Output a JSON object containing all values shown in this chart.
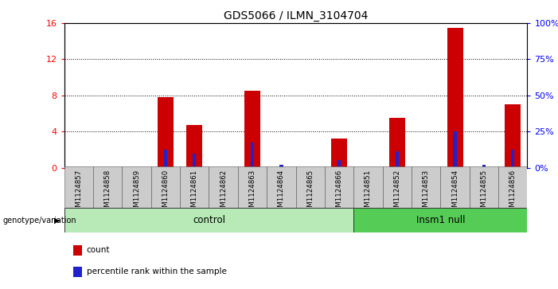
{
  "title": "GDS5066 / ILMN_3104704",
  "samples": [
    "GSM1124857",
    "GSM1124858",
    "GSM1124859",
    "GSM1124860",
    "GSM1124861",
    "GSM1124862",
    "GSM1124863",
    "GSM1124864",
    "GSM1124865",
    "GSM1124866",
    "GSM1124851",
    "GSM1124852",
    "GSM1124853",
    "GSM1124854",
    "GSM1124855",
    "GSM1124856"
  ],
  "counts": [
    0,
    0,
    0,
    7.8,
    4.7,
    0,
    8.5,
    0,
    0,
    3.2,
    0,
    5.5,
    0,
    15.5,
    0,
    7.0
  ],
  "percentile_ranks": [
    0,
    0,
    0,
    12.5,
    9.5,
    0,
    17.5,
    2.0,
    0,
    5.0,
    0,
    11.5,
    0,
    25.0,
    2.0,
    12.5
  ],
  "control_count": 10,
  "insm1_count": 6,
  "ylim_left": [
    0,
    16
  ],
  "ylim_right": [
    0,
    100
  ],
  "yticks_left": [
    0,
    4,
    8,
    12,
    16
  ],
  "yticks_right": [
    0,
    25,
    50,
    75,
    100
  ],
  "bar_color_red": "#cc0000",
  "bar_color_blue": "#2222cc",
  "control_bg": "#b8eab8",
  "insm1_bg": "#55cc55",
  "tick_bg": "#cccccc",
  "grid_color": "#000000"
}
